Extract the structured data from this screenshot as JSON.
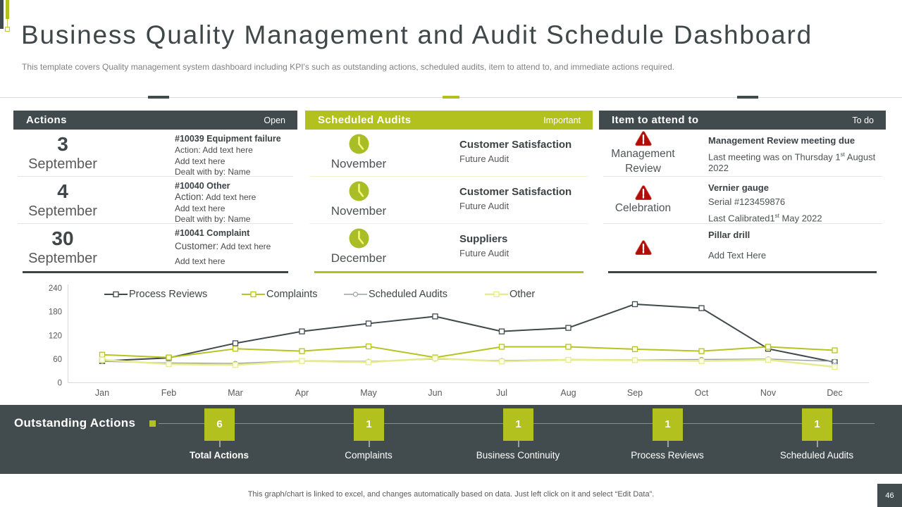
{
  "header": {
    "title": "Business Quality Management and Audit Schedule Dashboard",
    "subtitle": "This template covers Quality management system dashboard including KPI's such as outstanding actions, scheduled audits, item to attend to, and immediate actions required."
  },
  "panels": {
    "actions": {
      "title": "Actions",
      "tag": "Open",
      "rows": [
        {
          "day": "3",
          "month": "September",
          "title": "#10039 Equipment failure",
          "l1_pre": "",
          "l1_rest": "Action: Add text here",
          "l2": "Add text here",
          "l3": "Dealt  with by: Name"
        },
        {
          "day": "4",
          "month": "September",
          "title": "#10040 Other",
          "l1_pre": "Action:",
          "l1_rest": "  Add text here",
          "l2": "Add text here",
          "l3": "Dealt  with by: Name"
        },
        {
          "day": "30",
          "month": "September",
          "title": "#10041 Complaint",
          "l1_pre": "Customer:",
          "l1_rest": " Add text here",
          "l2": "Add text here",
          "l3": ""
        }
      ]
    },
    "audits": {
      "title": "Scheduled Audits",
      "tag": "Important",
      "rows": [
        {
          "month": "November",
          "title": "Customer Satisfaction",
          "subtitle": "Future Audit"
        },
        {
          "month": "November",
          "title": "Customer Satisfaction",
          "subtitle": "Future Audit"
        },
        {
          "month": "December",
          "title": "Suppliers",
          "subtitle": "Future Audit"
        }
      ]
    },
    "attend": {
      "title": "Item to attend to",
      "tag": "To do",
      "rows": [
        {
          "caption": "Management Review",
          "title": "Management Review meeting due",
          "line1": "",
          "detail_pre": "Last meeting was on Thursday 1",
          "detail_sup": "st",
          "detail_post": " August 2022"
        },
        {
          "caption": "Celebration",
          "title": "Vernier gauge",
          "line1": "Serial #123459876",
          "detail_pre": "Last Calibrated1",
          "detail_sup": "st",
          "detail_post": " May 2022"
        },
        {
          "caption": "",
          "title": "Pillar drill",
          "line1": "Add Text Here",
          "detail_pre": "",
          "detail_sup": "",
          "detail_post": ""
        }
      ]
    }
  },
  "chart_data": {
    "type": "line",
    "categories": [
      "Jan",
      "Feb",
      "Mar",
      "Apr",
      "May",
      "Jun",
      "Jul",
      "Aug",
      "Sep",
      "Oct",
      "Nov",
      "Dec"
    ],
    "series": [
      {
        "name": "Process Reviews",
        "values": [
          55,
          63,
          100,
          130,
          150,
          168,
          130,
          139,
          199,
          189,
          86,
          52
        ],
        "color": "#40494b",
        "marker": "square",
        "marker_fill": "#ffffff",
        "width": 2
      },
      {
        "name": "Complaints",
        "values": [
          71,
          64,
          86,
          80,
          92,
          64,
          91,
          91,
          85,
          80,
          91,
          82
        ],
        "color": "#b5c41f",
        "marker": "square",
        "marker_fill": "#fcfde2",
        "width": 2
      },
      {
        "name": "Scheduled Audits",
        "values": [
          54,
          50,
          49,
          56,
          54,
          60,
          56,
          59,
          58,
          59,
          60,
          54
        ],
        "color": "#9aa0a1",
        "marker": "circle",
        "marker_fill": "#ffffff",
        "width": 1.4
      },
      {
        "name": "Other",
        "values": [
          58,
          47,
          45,
          55,
          52,
          62,
          54,
          58,
          57,
          55,
          58,
          40
        ],
        "color": "#e6ec8e",
        "marker": "square",
        "marker_fill": "#fdfee9",
        "width": 2.5
      }
    ],
    "ylim": [
      0,
      240
    ],
    "yticks": [
      0,
      60,
      120,
      180,
      240
    ],
    "grid": false,
    "legend_position": "top"
  },
  "bottom": {
    "title": "Outstanding Actions",
    "kpis": [
      {
        "value": "6",
        "label": "Total Actions"
      },
      {
        "value": "1",
        "label": "Complaints"
      },
      {
        "value": "1",
        "label": "Business Continuity"
      },
      {
        "value": "1",
        "label": "Process Reviews"
      },
      {
        "value": "1",
        "label": "Scheduled Audits"
      }
    ]
  },
  "footer": {
    "note": "This graph/chart is linked to excel,  and changes automatically based on data. Just left click on it and select “Edit Data”.",
    "page": "46"
  },
  "colors": {
    "charcoal": "#414a4c",
    "green": "#b2c11d",
    "red": "#b00d06",
    "axis_text": "#595959"
  }
}
